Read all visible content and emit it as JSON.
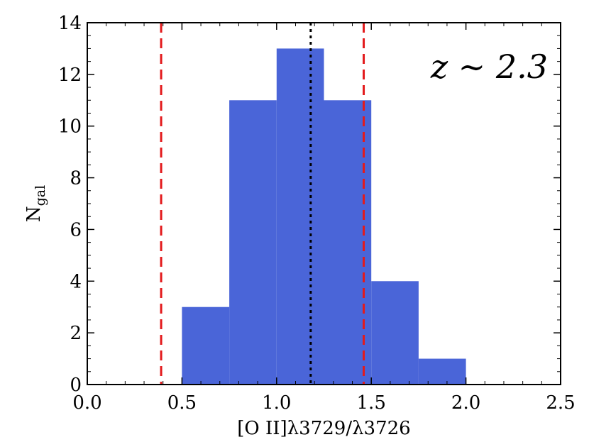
{
  "chart_data": {
    "type": "bar",
    "title": "",
    "xlabel": "[O II]λ3729/λ3726",
    "ylabel": "N",
    "ylabel_sub": "gal",
    "annotation": "z ∼ 2.3",
    "xlim": [
      0.0,
      2.5
    ],
    "ylim": [
      0,
      14
    ],
    "x_ticks": [
      0.0,
      0.5,
      1.0,
      1.5,
      2.0,
      2.5
    ],
    "x_tick_labels": [
      "0.0",
      "0.5",
      "1.0",
      "1.5",
      "2.0",
      "2.5"
    ],
    "y_ticks": [
      0,
      2,
      4,
      6,
      8,
      10,
      12,
      14
    ],
    "y_tick_labels": [
      "0",
      "2",
      "4",
      "6",
      "8",
      "10",
      "12",
      "14"
    ],
    "bins": [
      {
        "x0": 0.5,
        "x1": 0.75,
        "count": 3
      },
      {
        "x0": 0.75,
        "x1": 1.0,
        "count": 11
      },
      {
        "x0": 1.0,
        "x1": 1.25,
        "count": 13
      },
      {
        "x0": 1.25,
        "x1": 1.5,
        "count": 11
      },
      {
        "x0": 1.5,
        "x1": 1.75,
        "count": 4
      },
      {
        "x0": 1.75,
        "x1": 2.0,
        "count": 1
      }
    ],
    "reference_lines": [
      {
        "x": 0.39,
        "style": "dashed",
        "color": "#e31a1c"
      },
      {
        "x": 1.46,
        "style": "dashed",
        "color": "#e31a1c"
      },
      {
        "x": 1.18,
        "style": "dotted",
        "color": "#000000"
      }
    ],
    "bar_color": "#4a65d8",
    "grid": false
  }
}
